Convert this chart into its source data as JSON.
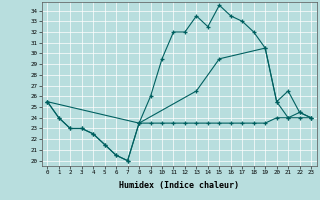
{
  "xlabel": "Humidex (Indice chaleur)",
  "xlim": [
    -0.5,
    23.5
  ],
  "ylim": [
    19.5,
    34.8
  ],
  "yticks": [
    20,
    21,
    22,
    23,
    24,
    25,
    26,
    27,
    28,
    29,
    30,
    31,
    32,
    33,
    34
  ],
  "xticks": [
    0,
    1,
    2,
    3,
    4,
    5,
    6,
    7,
    8,
    9,
    10,
    11,
    12,
    13,
    14,
    15,
    16,
    17,
    18,
    19,
    20,
    21,
    22,
    23
  ],
  "bg_color": "#b8dede",
  "line_color": "#006060",
  "curve1_x": [
    0,
    1,
    2,
    3,
    4,
    5,
    6,
    7,
    8,
    9,
    10,
    11,
    12,
    13,
    14,
    15,
    16,
    17,
    18,
    19,
    20,
    21,
    22,
    23
  ],
  "curve1_y": [
    25.5,
    24.0,
    23.0,
    23.0,
    22.5,
    21.5,
    20.5,
    20.0,
    23.5,
    26.0,
    29.5,
    32.0,
    32.0,
    33.5,
    32.5,
    34.5,
    33.5,
    33.0,
    32.0,
    30.5,
    25.5,
    24.0,
    24.5,
    24.0
  ],
  "curve2_x": [
    0,
    8,
    13,
    15,
    19,
    20,
    21,
    22,
    23
  ],
  "curve2_y": [
    25.5,
    23.5,
    26.5,
    29.5,
    30.5,
    25.5,
    26.5,
    24.5,
    24.0
  ],
  "curve3_x": [
    0,
    1,
    2,
    3,
    4,
    5,
    6,
    7,
    8,
    9,
    10,
    11,
    12,
    13,
    14,
    15,
    16,
    17,
    18,
    19,
    20,
    21,
    22,
    23
  ],
  "curve3_y": [
    25.5,
    24.0,
    23.0,
    23.0,
    22.5,
    21.5,
    20.5,
    20.0,
    23.5,
    23.5,
    23.5,
    23.5,
    23.5,
    23.5,
    23.5,
    23.5,
    23.5,
    23.5,
    23.5,
    23.5,
    24.0,
    24.0,
    24.0,
    24.0
  ]
}
